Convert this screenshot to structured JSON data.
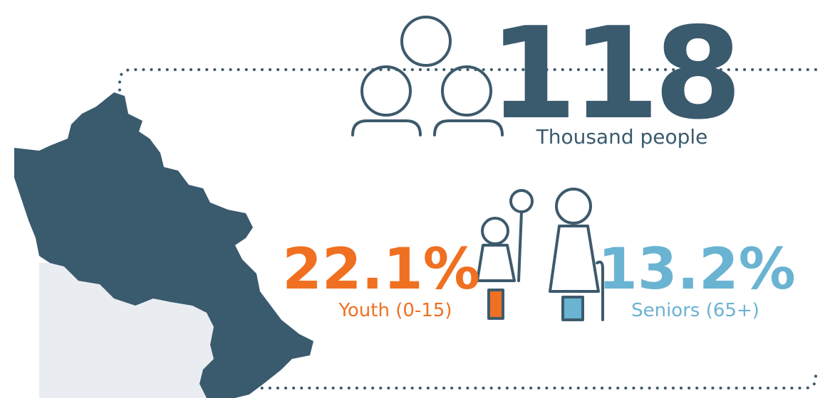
{
  "total": {
    "value": "118",
    "label": "Thousand people"
  },
  "youth": {
    "value": "22.1%",
    "label": "Youth (0-15)"
  },
  "seniors": {
    "value": "13.2%",
    "label": "Seniors (65+)"
  }
}
